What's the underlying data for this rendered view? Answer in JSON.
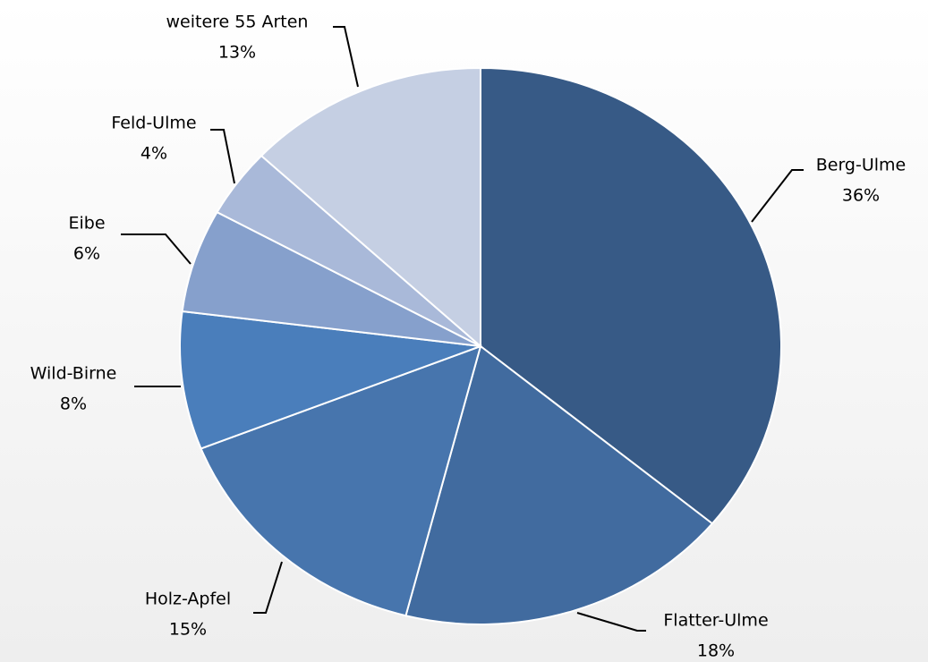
{
  "chart_data": {
    "type": "pie",
    "categories": [
      "Berg-Ulme",
      "Flatter-Ulme",
      "Holz-Apfel",
      "Wild-Birne",
      "Eibe",
      "Feld-Ulme",
      "weitere 55 Arten"
    ],
    "values": [
      36,
      18,
      15,
      8,
      6,
      4,
      13
    ],
    "value_labels": [
      "36%",
      "18%",
      "15%",
      "8%",
      "6%",
      "4%",
      "13%"
    ],
    "colors": [
      "#375a86",
      "#416b9f",
      "#4775ad",
      "#4a7ebb",
      "#86a0cc",
      "#a9b9d9",
      "#c5cfe3"
    ]
  }
}
